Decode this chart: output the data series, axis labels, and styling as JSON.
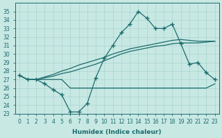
{
  "xlabel": "Humidex (Indice chaleur)",
  "background_color": "#c8e8e4",
  "grid_color": "#a8d4ce",
  "line_color": "#1a6b6b",
  "x": [
    0,
    1,
    2,
    3,
    4,
    5,
    6,
    7,
    8,
    9,
    10,
    11,
    12,
    13,
    14,
    15,
    16,
    17,
    18,
    19,
    20,
    21,
    22,
    23
  ],
  "line_jagged": [
    27.5,
    27.0,
    27.0,
    26.5,
    25.8,
    25.2,
    23.2,
    23.2,
    24.2,
    27.2,
    29.5,
    31.0,
    32.5,
    33.5,
    35.0,
    34.2,
    33.0,
    33.0,
    33.5,
    31.2,
    28.8,
    29.0,
    27.8,
    27.0
  ],
  "line_flat": [
    27.5,
    27.0,
    27.0,
    27.0,
    27.0,
    27.0,
    26.0,
    26.0,
    26.0,
    26.0,
    26.0,
    26.0,
    26.0,
    26.0,
    26.0,
    26.0,
    26.0,
    26.0,
    26.0,
    26.0,
    26.0,
    26.0,
    26.0,
    26.5
  ],
  "line_rise1": [
    27.5,
    27.0,
    27.0,
    27.2,
    27.4,
    27.7,
    27.9,
    28.2,
    28.5,
    28.8,
    29.2,
    29.6,
    30.0,
    30.3,
    30.5,
    30.7,
    30.9,
    31.0,
    31.2,
    31.3,
    31.3,
    31.3,
    31.4,
    31.5
  ],
  "line_rise2": [
    27.5,
    27.0,
    27.0,
    27.3,
    27.6,
    28.0,
    28.3,
    28.7,
    29.0,
    29.3,
    29.6,
    30.0,
    30.3,
    30.6,
    30.8,
    31.0,
    31.2,
    31.4,
    31.6,
    31.7,
    31.6,
    31.5,
    31.5,
    31.5
  ],
  "ylim": [
    23,
    36
  ],
  "yticks": [
    23,
    24,
    25,
    26,
    27,
    28,
    29,
    30,
    31,
    32,
    33,
    34,
    35
  ],
  "xlim_min": -0.5,
  "xlim_max": 23.5
}
